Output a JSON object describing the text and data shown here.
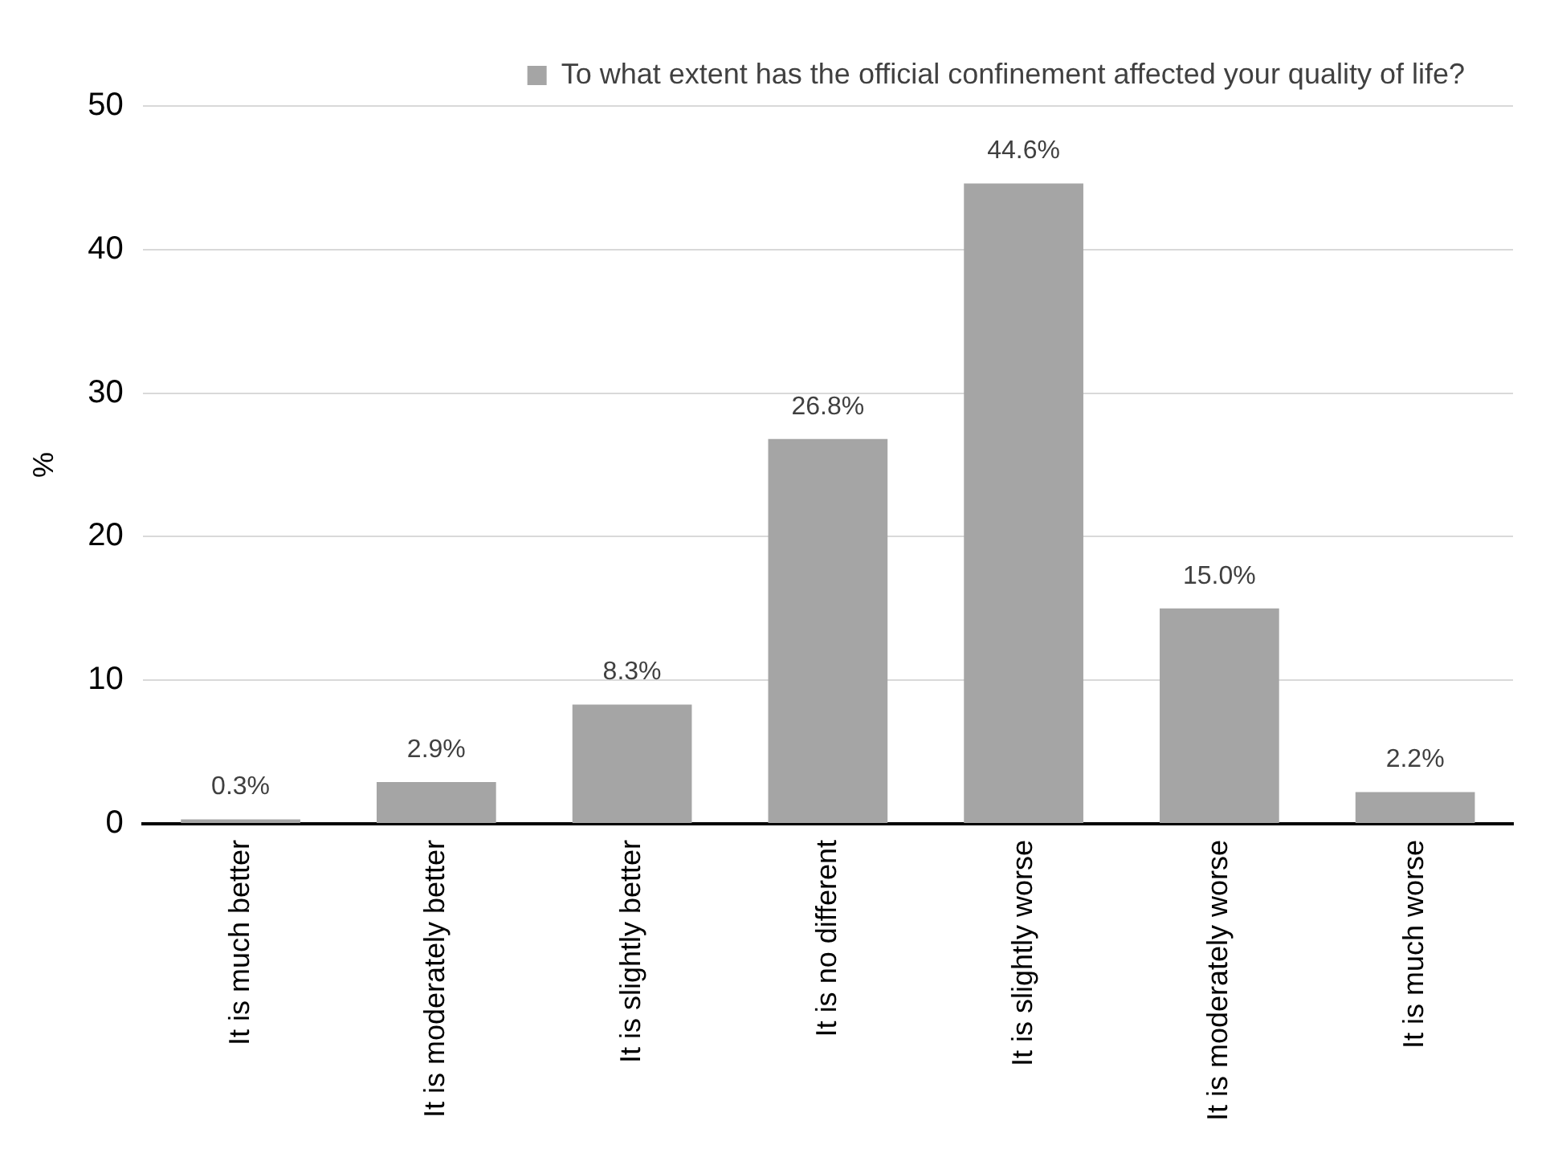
{
  "chart_data": {
    "type": "bar",
    "ylabel": "%",
    "categories": [
      "It is much better",
      "It is moderately better",
      "It is slightly better",
      "It is no different",
      "It is slightly worse",
      "It is moderately worse",
      "It is much worse"
    ],
    "series": [
      {
        "name": "To what extent has the official confinement affected your quality of life?",
        "color": "#a5a5a5",
        "values": [
          0.3,
          2.9,
          8.3,
          26.8,
          44.6,
          15.0,
          2.2
        ],
        "value_labels": [
          "0.3%",
          "2.9%",
          "8.3%",
          "26.8%",
          "44.6%",
          "15.0%",
          "2.2%"
        ]
      }
    ],
    "ylim": [
      0,
      50
    ],
    "yticks": [
      0,
      10,
      20,
      30,
      40,
      50
    ],
    "grid": "y",
    "legend": "top"
  }
}
